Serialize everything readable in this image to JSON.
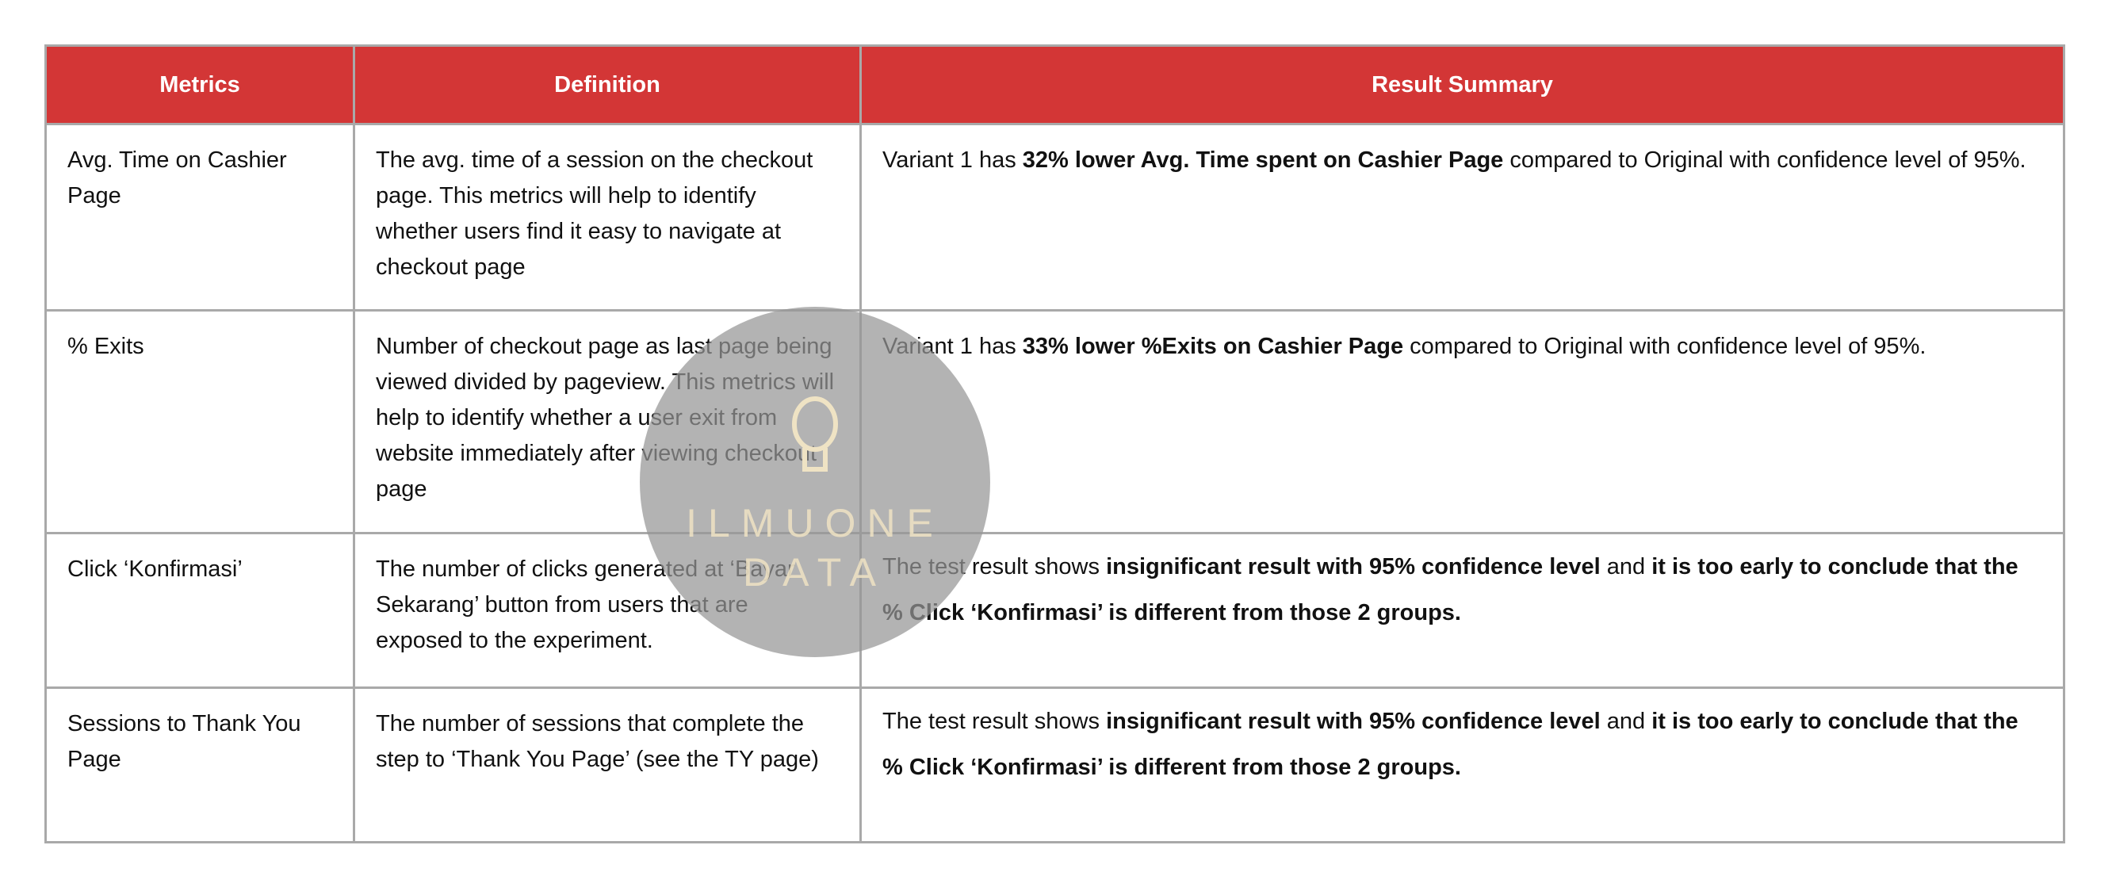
{
  "table": {
    "headers": [
      "Metrics",
      "Definition",
      "Result Summary"
    ],
    "rows": [
      {
        "metric": "Avg. Time on Cashier Page",
        "definition": "The avg. time of a session on the checkout page. This metrics will help to identify whether users find it easy to navigate at checkout page",
        "result": [
          "Variant 1 has ",
          "32% lower Avg. Time spent on Cashier Page",
          " compared to Original with confidence level of 95%.",
          "",
          ""
        ]
      },
      {
        "metric": "% Exits",
        "definition": "Number of checkout page as last page being viewed divided by pageview. This metrics will help to identify whether a user exit from website immediately after viewing checkout page",
        "result": [
          "Variant 1 has ",
          "33% lower %Exits on Cashier Page",
          " compared to Original with confidence level of 95%.",
          "",
          ""
        ]
      },
      {
        "metric": "Click ‘Konfirmasi’",
        "definition": "The number of clicks generated at ‘Bayar Sekarang’ button from users that are exposed to the experiment.",
        "result": [
          "The test result shows ",
          "insignificant result with 95% confidence level",
          " and ",
          "it is too early to conclude that the % Click ‘Konfirmasi’ is different from those 2 groups.",
          ""
        ]
      },
      {
        "metric": "Sessions to Thank You Page",
        "definition": "The number of sessions that complete the step to ‘Thank You Page’ (see the TY page)",
        "result": [
          "The test result shows ",
          "insignificant result with 95% confidence level",
          " and ",
          "it is too early to conclude that the % Click ‘Konfirmasi’ is different from those 2 groups.",
          ""
        ]
      }
    ]
  },
  "header_color": "#d33636",
  "watermark": {
    "line1": "ILMUONE",
    "line2": "DATA",
    "icon": "lightbulb-icon"
  }
}
